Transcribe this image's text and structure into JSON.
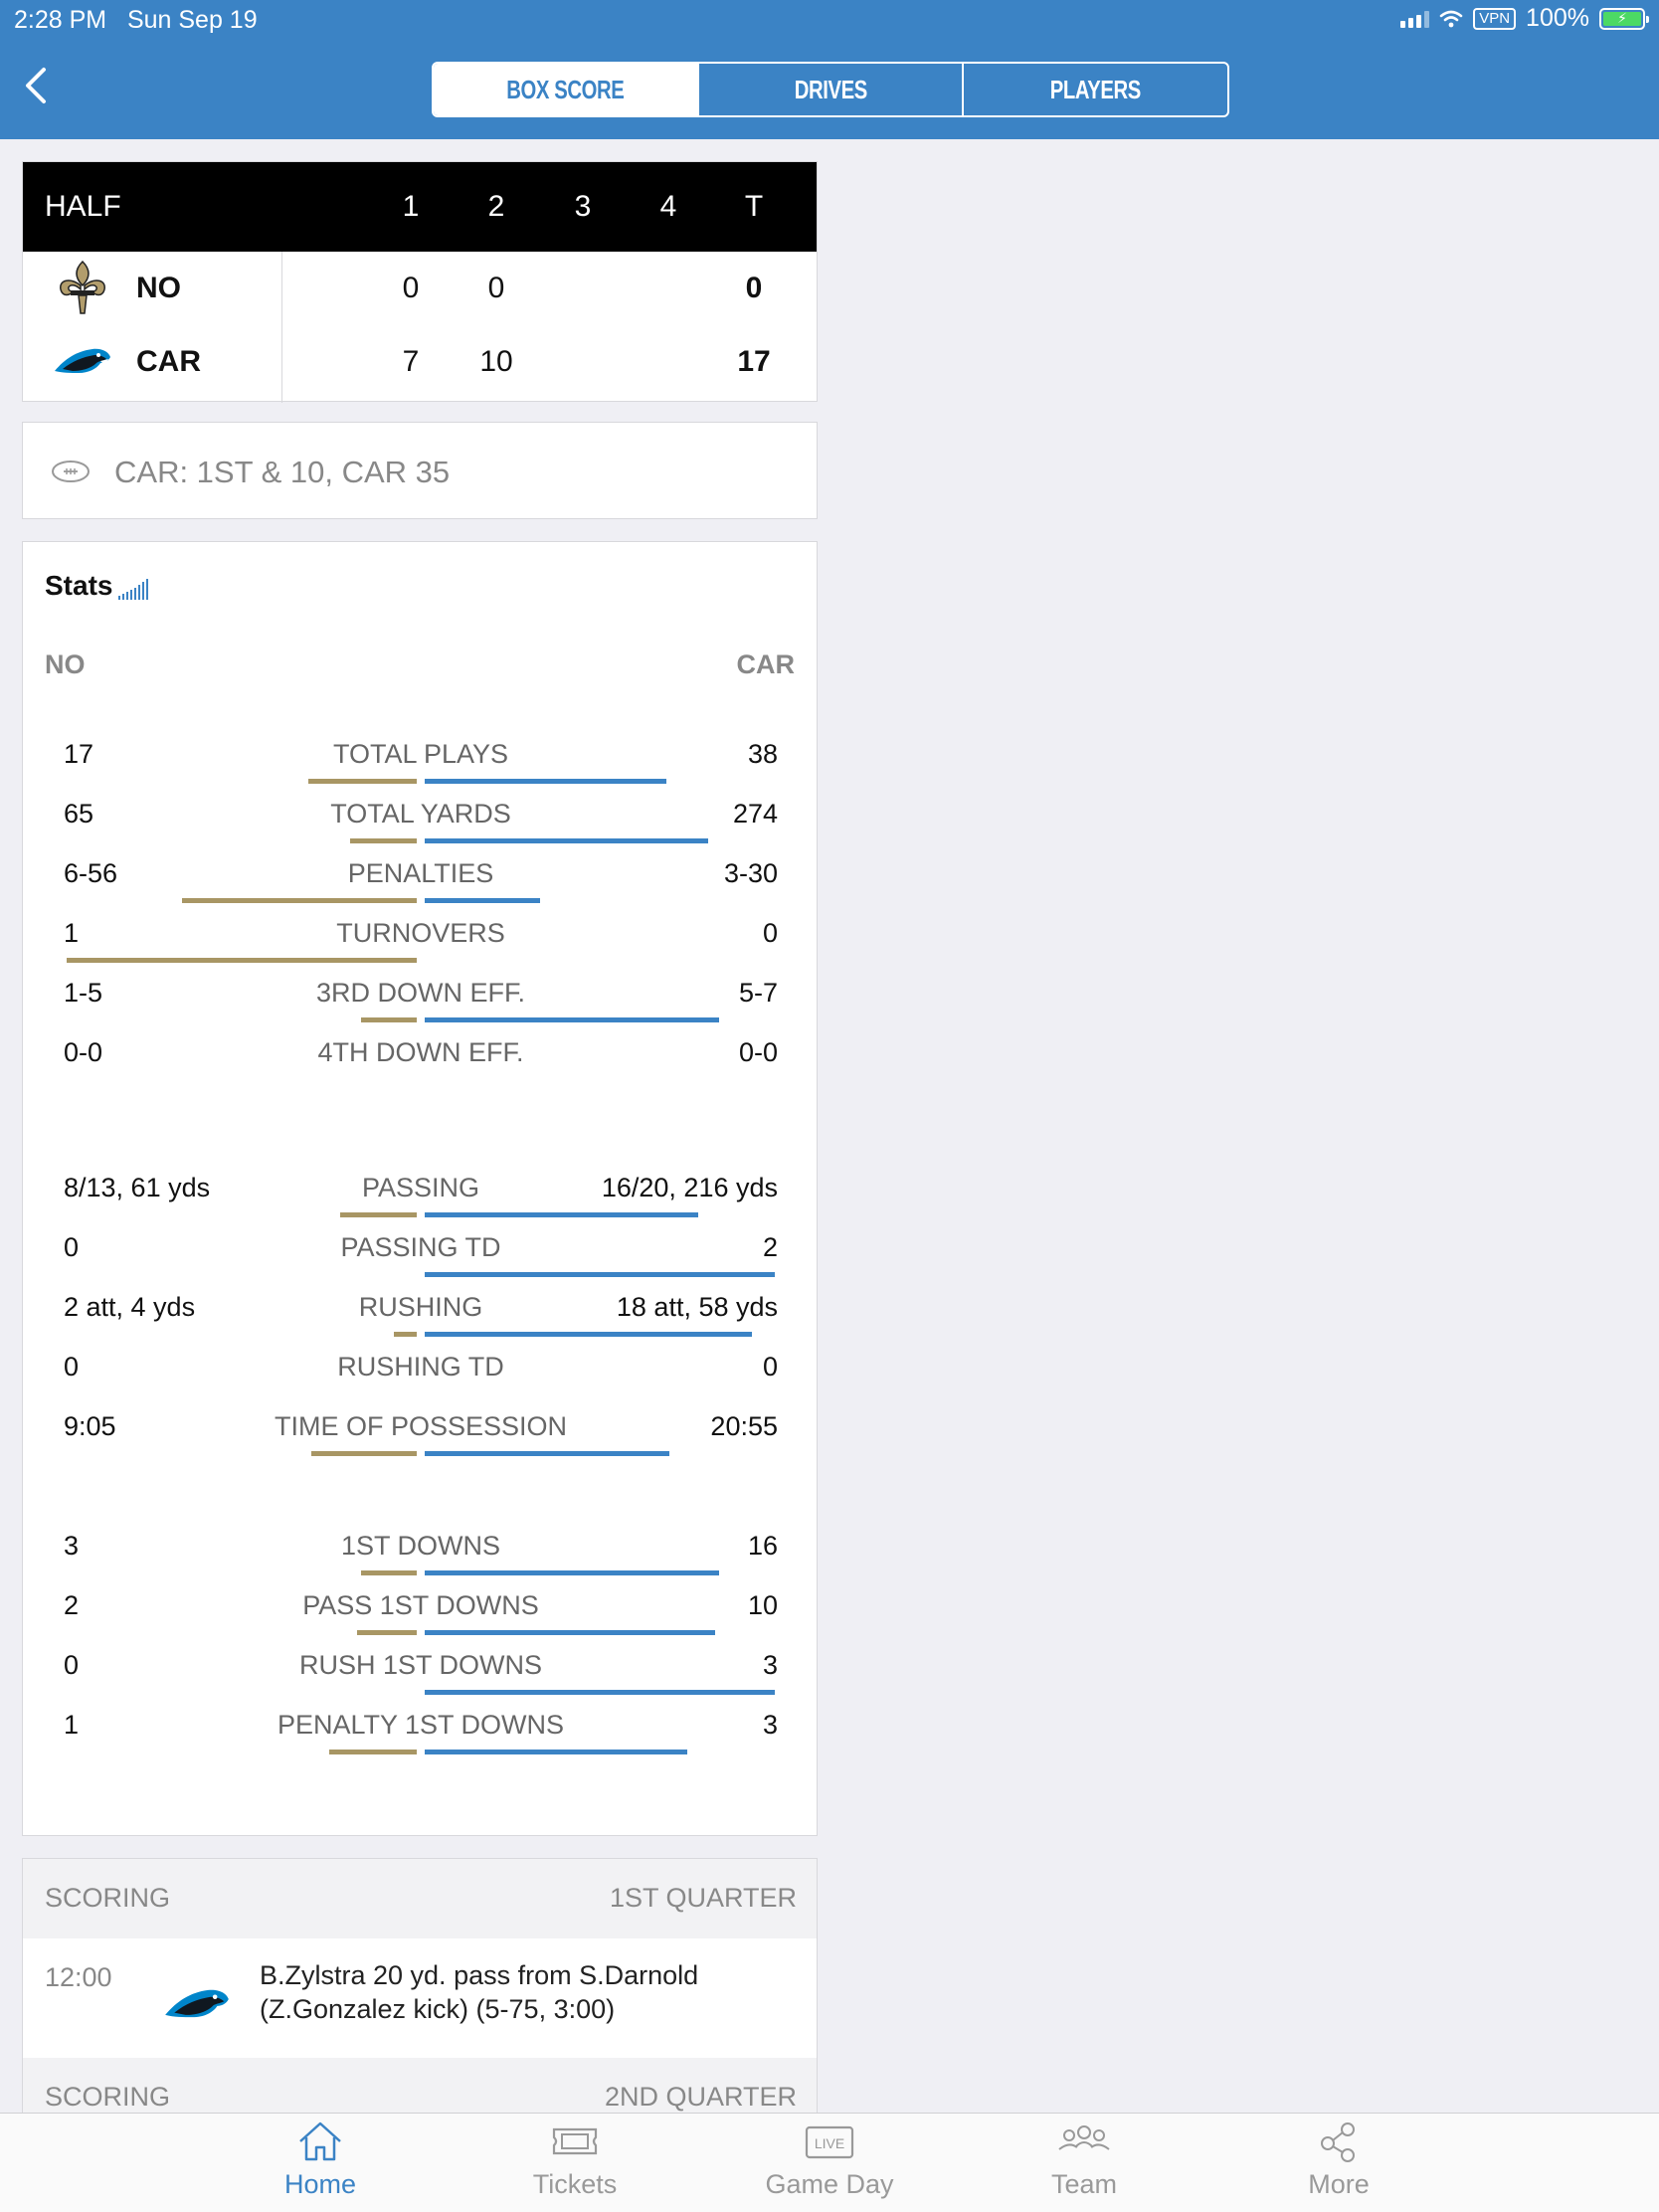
{
  "status_bar": {
    "time": "2:28 PM",
    "date": "Sun Sep 19",
    "vpn": "VPN",
    "battery": "100%"
  },
  "nav": {
    "back_icon": "chevron-left-icon",
    "tabs": [
      "BOX SCORE",
      "DRIVES",
      "PLAYERS"
    ],
    "selected_tab": "BOX SCORE"
  },
  "scoreboard": {
    "period_label": "HALF",
    "columns": [
      "1",
      "2",
      "3",
      "4",
      "T"
    ],
    "teams": [
      {
        "abbr": "NO",
        "logo": "saints-fleur-de-lis-icon",
        "q1": "0",
        "q2": "0",
        "total": "0"
      },
      {
        "abbr": "CAR",
        "logo": "panthers-logo-icon",
        "q1": "7",
        "q2": "10",
        "total": "17"
      }
    ]
  },
  "situation": {
    "icon": "football-icon",
    "text": "CAR: 1ST & 10, CAR 35"
  },
  "stats": {
    "title": "Stats",
    "left_team": "NO",
    "right_team": "CAR",
    "accent_colors": {
      "left": "#a89664",
      "right": "#3b83c5"
    },
    "groups": [
      [
        {
          "label": "TOTAL PLAYS",
          "left": "17",
          "right": "38",
          "left_share": 0.31,
          "right_share": 0.69
        },
        {
          "label": "TOTAL YARDS",
          "left": "65",
          "right": "274",
          "left_share": 0.19,
          "right_share": 0.81
        },
        {
          "label": "PENALTIES",
          "left": "6-56",
          "right": "3-30",
          "left_share": 0.67,
          "right_share": 0.33
        },
        {
          "label": "TURNOVERS",
          "left": "1",
          "right": "0",
          "left_share": 1.0,
          "right_share": 0.0
        },
        {
          "label": "3RD DOWN EFF.",
          "left": "1-5",
          "right": "5-7",
          "left_share": 0.16,
          "right_share": 0.84
        },
        {
          "label": "4TH DOWN EFF.",
          "left": "0-0",
          "right": "0-0",
          "left_share": 0.0,
          "right_share": 0.0
        }
      ],
      [
        {
          "label": "PASSING",
          "left": "8/13, 61 yds",
          "right": "16/20, 216 yds",
          "left_share": 0.22,
          "right_share": 0.78
        },
        {
          "label": "PASSING TD",
          "left": "0",
          "right": "2",
          "left_share": 0.0,
          "right_share": 1.0
        },
        {
          "label": "RUSHING",
          "left": "2 att, 4 yds",
          "right": "18 att, 58 yds",
          "left_share": 0.065,
          "right_share": 0.935
        },
        {
          "label": "RUSHING TD",
          "left": "0",
          "right": "0",
          "left_share": 0.0,
          "right_share": 0.0
        },
        {
          "label": "TIME OF POSSESSION",
          "left": "9:05",
          "right": "20:55",
          "left_share": 0.3,
          "right_share": 0.7
        }
      ],
      [
        {
          "label": "1ST DOWNS",
          "left": "3",
          "right": "16",
          "left_share": 0.16,
          "right_share": 0.84
        },
        {
          "label": "PASS 1ST DOWNS",
          "left": "2",
          "right": "10",
          "left_share": 0.17,
          "right_share": 0.83
        },
        {
          "label": "RUSH 1ST DOWNS",
          "left": "0",
          "right": "3",
          "left_share": 0.0,
          "right_share": 1.0
        },
        {
          "label": "PENALTY 1ST DOWNS",
          "left": "1",
          "right": "3",
          "left_share": 0.25,
          "right_share": 0.75
        }
      ]
    ]
  },
  "scoring": [
    {
      "header": "SCORING",
      "quarter": "1ST QUARTER",
      "plays": [
        {
          "time": "12:00",
          "team_logo": "panthers-logo-icon",
          "description": "B.Zylstra 20 yd. pass from S.Darnold (Z.Gonzalez kick) (5-75, 3:00)"
        }
      ]
    },
    {
      "header": "SCORING",
      "quarter": "2ND QUARTER",
      "plays": []
    }
  ],
  "tab_bar": [
    {
      "label": "Home",
      "icon": "home-icon",
      "active": true
    },
    {
      "label": "Tickets",
      "icon": "ticket-icon",
      "active": false
    },
    {
      "label": "Game Day",
      "icon": "live-icon",
      "icon_text": "LIVE",
      "active": false
    },
    {
      "label": "Team",
      "icon": "team-icon",
      "active": false
    },
    {
      "label": "More",
      "icon": "share-icon",
      "active": false
    }
  ]
}
